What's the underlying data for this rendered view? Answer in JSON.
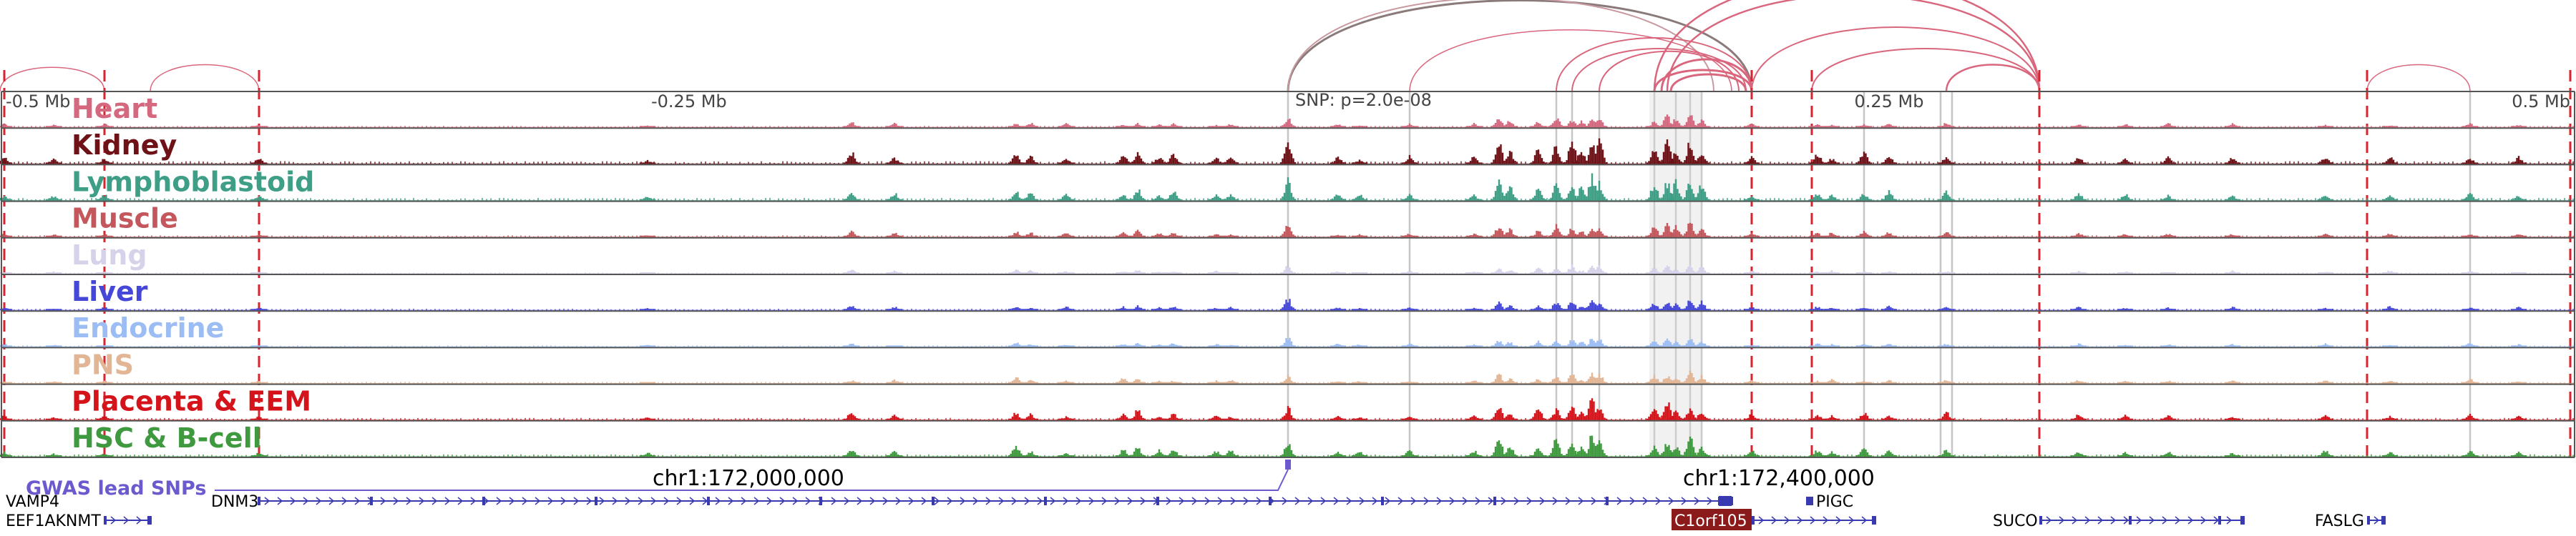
{
  "coords": {
    "marks": [
      {
        "label": "-0.5 Mb",
        "anchor": "start"
      },
      {
        "label": "-0.25 Mb",
        "anchor": "start"
      },
      {
        "label": "SNP: p=2.0e-08",
        "anchor": "start"
      },
      {
        "label": "0.25 Mb",
        "anchor": "middle"
      },
      {
        "label": "0.5 Mb",
        "anchor": "end"
      }
    ],
    "lower": [
      {
        "label": "chr1:172,000,000"
      },
      {
        "label": "chr1:172,400,000"
      }
    ]
  },
  "tracks": [
    {
      "name": "Heart",
      "color": "#d4687e",
      "labelColor": "#d4687e",
      "scale": 0.45
    },
    {
      "name": "Kidney",
      "color": "#6e1218",
      "labelColor": "#6e1218",
      "scale": 1.0
    },
    {
      "name": "Lymphoblastoid",
      "color": "#3f9e86",
      "labelColor": "#3f9e86",
      "scale": 0.9
    },
    {
      "name": "Muscle",
      "color": "#c4575c",
      "labelColor": "#c4575c",
      "scale": 0.55
    },
    {
      "name": "Lung",
      "color": "#d6d2ea",
      "labelColor": "#d6d2ea",
      "scale": 0.35
    },
    {
      "name": "Liver",
      "color": "#4447d8",
      "labelColor": "#4447d8",
      "scale": 0.45
    },
    {
      "name": "Endocrine",
      "color": "#9bbdf4",
      "labelColor": "#9bbdf4",
      "scale": 0.4
    },
    {
      "name": "PNS",
      "color": "#e2b594",
      "labelColor": "#e2b594",
      "scale": 0.45
    },
    {
      "name": "Placenta & EEM",
      "color": "#d4141a",
      "labelColor": "#d4141a",
      "scale": 0.7
    },
    {
      "name": "HSC & B-cell",
      "color": "#3f9a3f",
      "labelColor": "#3f9a3f",
      "scale": 0.8
    }
  ],
  "gwas": {
    "label": "GWAS lead SNPs",
    "color": "#6a5acd"
  },
  "genes": [
    {
      "name": "VAMP4",
      "row": 0,
      "highlight": false
    },
    {
      "name": "DNM3",
      "row": 0,
      "highlight": false
    },
    {
      "name": "PIGC",
      "row": 0,
      "highlight": false
    },
    {
      "name": "EEF1AKNMT",
      "row": 1,
      "highlight": false
    },
    {
      "name": "C1orf105",
      "row": 1,
      "highlight": true
    },
    {
      "name": "SUCO",
      "row": 1,
      "highlight": false
    },
    {
      "name": "FASLG",
      "row": 1,
      "highlight": false
    }
  ],
  "colors": {
    "promoterLine": "#d9232e",
    "grayLine": "#b4b4b4",
    "loopPink": "#d9667c",
    "loopGray": "#8a7a7a",
    "geneColor": "#3a3ab0",
    "highlightBg": "#8b1a1a",
    "connector": "#6a5acd"
  }
}
